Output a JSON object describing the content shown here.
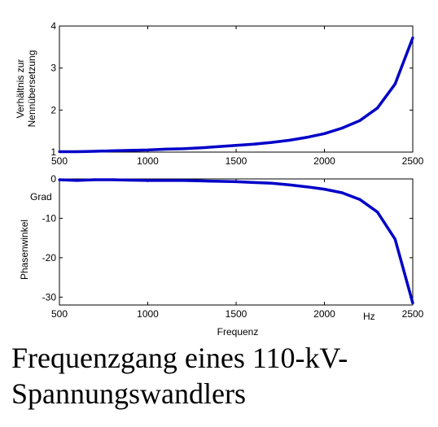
{
  "caption": {
    "line1": "Frequenzgang eines 110-kV-",
    "line2": "Spannungswandlers"
  },
  "line_color": "#0000c8",
  "chart_data": [
    {
      "type": "line",
      "ylabel_lines": [
        "Verhältnis zur",
        "Nennübersetzung"
      ],
      "xlim": [
        500,
        2500
      ],
      "ylim": [
        1,
        4
      ],
      "xticks": [
        500,
        1000,
        1500,
        2000,
        2500
      ],
      "yticks": [
        1,
        2,
        3,
        4
      ],
      "x": [
        500,
        600,
        700,
        800,
        900,
        1000,
        1100,
        1200,
        1300,
        1400,
        1500,
        1600,
        1700,
        1800,
        1900,
        2000,
        2100,
        2200,
        2300,
        2400,
        2500
      ],
      "y": [
        1.01,
        1.01,
        1.02,
        1.03,
        1.04,
        1.05,
        1.07,
        1.08,
        1.1,
        1.13,
        1.16,
        1.19,
        1.23,
        1.28,
        1.35,
        1.44,
        1.57,
        1.75,
        2.05,
        2.62,
        3.72
      ]
    },
    {
      "type": "line",
      "ylabel": "Phasenwinkel",
      "yunit": "Grad",
      "xlabel": "Frequenz",
      "xunit": "Hz",
      "xlim": [
        500,
        2500
      ],
      "ylim": [
        -32,
        0
      ],
      "xticks": [
        500,
        1000,
        1500,
        2000,
        2500
      ],
      "yticks": [
        0,
        -10,
        -20,
        -30
      ],
      "x": [
        500,
        600,
        700,
        800,
        900,
        1000,
        1100,
        1200,
        1300,
        1400,
        1500,
        1600,
        1700,
        1800,
        1900,
        2000,
        2100,
        2200,
        2300,
        2400,
        2500
      ],
      "y": [
        -0.2,
        -0.4,
        -0.2,
        -0.2,
        -0.3,
        -0.4,
        -0.4,
        -0.4,
        -0.5,
        -0.6,
        -0.7,
        -0.9,
        -1.1,
        -1.5,
        -2.0,
        -2.6,
        -3.5,
        -5.2,
        -8.4,
        -15.3,
        -31.5
      ]
    }
  ]
}
